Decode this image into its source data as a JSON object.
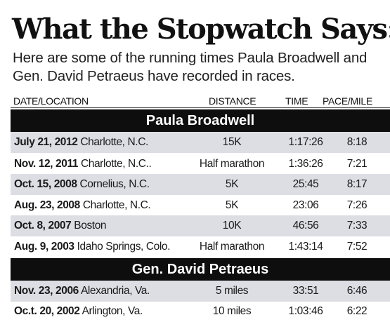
{
  "title": "What the Stopwatch Says:",
  "subtitle": "Here are some of the running times Paula Broadwell and Gen. David Petraeus have recorded in races.",
  "columns": {
    "date_location": "DATE/LOCATION",
    "distance": "DISTANCE",
    "time": "TIME",
    "pace": "PACE/MILE"
  },
  "sections": [
    {
      "name": "Paula Broadwell",
      "rows": [
        {
          "date": "July 21, 2012",
          "location": "Charlotte, N.C.",
          "distance": "15K",
          "time": "1:17:26",
          "pace": "8:18"
        },
        {
          "date": "Nov. 12, 2011",
          "location": "Charlotte, N.C..",
          "distance": "Half marathon",
          "time": "1:36:26",
          "pace": "7:21"
        },
        {
          "date": "Oct. 15, 2008",
          "location": "Cornelius, N.C.",
          "distance": "5K",
          "time": "25:45",
          "pace": "8:17"
        },
        {
          "date": "Aug. 23, 2008",
          "location": "Charlotte, N.C.",
          "distance": "5K",
          "time": "23:06",
          "pace": "7:26"
        },
        {
          "date": "Oct. 8, 2007",
          "location": "Boston",
          "distance": "10K",
          "time": "46:56",
          "pace": "7:33"
        },
        {
          "date": "Aug. 9, 2003",
          "location": "Idaho Springs, Colo.",
          "distance": "Half marathon",
          "time": "1:43:14",
          "pace": "7:52"
        }
      ]
    },
    {
      "name": "Gen. David Petraeus",
      "rows": [
        {
          "date": "Nov. 23, 2006",
          "location": "Alexandria, Va.",
          "distance": "5 miles",
          "time": "33:51",
          "pace": "6:46"
        },
        {
          "date": "Oc.t. 20, 2002",
          "location": "Arlington, Va.",
          "distance": "10 miles",
          "time": "1:03:46",
          "pace": "6:22"
        }
      ]
    }
  ],
  "colors": {
    "section_bg": "#0e0e0e",
    "row_shade": "#dcdee3"
  }
}
